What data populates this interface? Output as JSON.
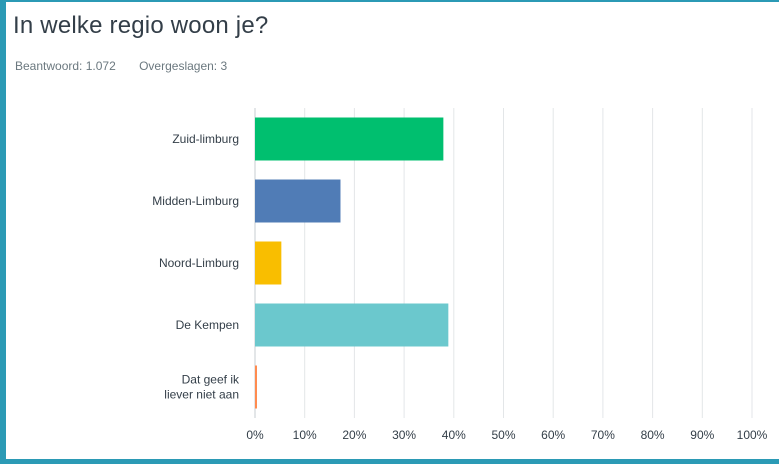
{
  "question": {
    "title": "In welke regio woon je?",
    "answered_label": "Beantwoord: 1.072",
    "skipped_label": "Overgeslagen: 3"
  },
  "colors": {
    "frame": "#2b9ab5",
    "grid": "#e3e6e8",
    "axis": "#c7ccd0",
    "label": "#333e48"
  },
  "chart_data": {
    "type": "bar",
    "orientation": "horizontal",
    "categories": [
      "Zuid-limburg",
      "Midden-Limburg",
      "Noord-Limburg",
      "De Kempen",
      "Dat geef ik liever niet aan"
    ],
    "category_lines": [
      [
        "Zuid-limburg"
      ],
      [
        "Midden-Limburg"
      ],
      [
        "Noord-Limburg"
      ],
      [
        "De Kempen"
      ],
      [
        "Dat geef ik",
        "liever niet aan"
      ]
    ],
    "values": [
      37.9,
      17.2,
      5.3,
      38.9,
      0.4
    ],
    "colors": [
      "#00bf6f",
      "#507cb6",
      "#f9be00",
      "#6bc8cd",
      "#ff8b4f"
    ],
    "xlim": [
      0,
      100
    ],
    "xticks": [
      0,
      10,
      20,
      30,
      40,
      50,
      60,
      70,
      80,
      90,
      100
    ],
    "xtick_labels": [
      "0%",
      "10%",
      "20%",
      "30%",
      "40%",
      "50%",
      "60%",
      "70%",
      "80%",
      "90%",
      "100%"
    ],
    "xlabel": "",
    "ylabel": "",
    "grid": true,
    "legend": "none"
  }
}
